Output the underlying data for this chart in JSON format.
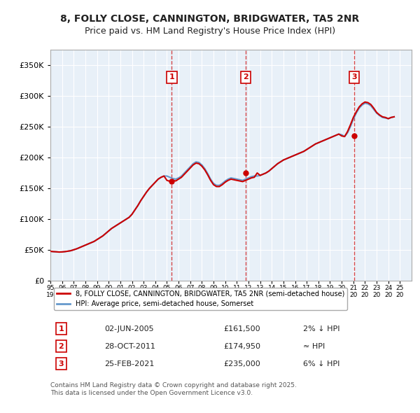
{
  "title_line1": "8, FOLLY CLOSE, CANNINGTON, BRIDGWATER, TA5 2NR",
  "title_line2": "Price paid vs. HM Land Registry's House Price Index (HPI)",
  "ylabel": "",
  "xlabel": "",
  "xlim_start": 1995.0,
  "xlim_end": 2026.0,
  "ylim": [
    0,
    375000
  ],
  "yticks": [
    0,
    50000,
    100000,
    150000,
    200000,
    250000,
    300000,
    350000
  ],
  "ytick_labels": [
    "£0",
    "£50K",
    "£100K",
    "£150K",
    "£200K",
    "£250K",
    "£300K",
    "£350K"
  ],
  "background_color": "#ffffff",
  "plot_bg_color": "#e8f0f8",
  "grid_color": "#ffffff",
  "property_color": "#cc0000",
  "hpi_color": "#6699cc",
  "legend1": "8, FOLLY CLOSE, CANNINGTON, BRIDGWATER, TA5 2NR (semi-detached house)",
  "legend2": "HPI: Average price, semi-detached house, Somerset",
  "sale_dates": [
    "2005-06-02",
    "2011-10-28",
    "2021-02-25"
  ],
  "sale_prices": [
    161500,
    174950,
    235000
  ],
  "sale_labels": [
    "1",
    "2",
    "3"
  ],
  "table_rows": [
    [
      "1",
      "02-JUN-2005",
      "£161,500",
      "2% ↓ HPI"
    ],
    [
      "2",
      "28-OCT-2011",
      "£174,950",
      "≈ HPI"
    ],
    [
      "3",
      "25-FEB-2021",
      "£235,000",
      "6% ↓ HPI"
    ]
  ],
  "footer": "Contains HM Land Registry data © Crown copyright and database right 2025.\nThis data is licensed under the Open Government Licence v3.0.",
  "hpi_years": [
    1995.0,
    1995.25,
    1995.5,
    1995.75,
    1996.0,
    1996.25,
    1996.5,
    1996.75,
    1997.0,
    1997.25,
    1997.5,
    1997.75,
    1998.0,
    1998.25,
    1998.5,
    1998.75,
    1999.0,
    1999.25,
    1999.5,
    1999.75,
    2000.0,
    2000.25,
    2000.5,
    2000.75,
    2001.0,
    2001.25,
    2001.5,
    2001.75,
    2002.0,
    2002.25,
    2002.5,
    2002.75,
    2003.0,
    2003.25,
    2003.5,
    2003.75,
    2004.0,
    2004.25,
    2004.5,
    2004.75,
    2005.0,
    2005.25,
    2005.5,
    2005.75,
    2006.0,
    2006.25,
    2006.5,
    2006.75,
    2007.0,
    2007.25,
    2007.5,
    2007.75,
    2008.0,
    2008.25,
    2008.5,
    2008.75,
    2009.0,
    2009.25,
    2009.5,
    2009.75,
    2010.0,
    2010.25,
    2010.5,
    2010.75,
    2011.0,
    2011.25,
    2011.5,
    2011.75,
    2012.0,
    2012.25,
    2012.5,
    2012.75,
    2013.0,
    2013.25,
    2013.5,
    2013.75,
    2014.0,
    2014.25,
    2014.5,
    2014.75,
    2015.0,
    2015.25,
    2015.5,
    2015.75,
    2016.0,
    2016.25,
    2016.5,
    2016.75,
    2017.0,
    2017.25,
    2017.5,
    2017.75,
    2018.0,
    2018.25,
    2018.5,
    2018.75,
    2019.0,
    2019.25,
    2019.5,
    2019.75,
    2020.0,
    2020.25,
    2020.5,
    2020.75,
    2021.0,
    2021.25,
    2021.5,
    2021.75,
    2022.0,
    2022.25,
    2022.5,
    2022.75,
    2023.0,
    2023.25,
    2023.5,
    2023.75,
    2024.0,
    2024.25,
    2024.5
  ],
  "hpi_values": [
    48000,
    47500,
    47200,
    46800,
    47000,
    47500,
    48200,
    49000,
    50500,
    52000,
    54000,
    56000,
    58000,
    60000,
    62000,
    64000,
    67000,
    70000,
    73000,
    77000,
    81000,
    85000,
    88000,
    91000,
    94000,
    97000,
    100000,
    103000,
    108000,
    115000,
    122000,
    130000,
    137000,
    144000,
    150000,
    155000,
    160000,
    165000,
    168000,
    170000,
    170000,
    168000,
    166000,
    165000,
    167000,
    170000,
    175000,
    180000,
    185000,
    190000,
    193000,
    192000,
    188000,
    182000,
    174000,
    165000,
    158000,
    155000,
    155000,
    158000,
    162000,
    165000,
    167000,
    166000,
    165000,
    164000,
    163000,
    165000,
    167000,
    169000,
    170000,
    170000,
    171000,
    173000,
    175000,
    178000,
    182000,
    186000,
    190000,
    193000,
    196000,
    198000,
    200000,
    202000,
    204000,
    206000,
    208000,
    210000,
    213000,
    216000,
    219000,
    222000,
    224000,
    226000,
    228000,
    230000,
    232000,
    234000,
    236000,
    238000,
    237000,
    234000,
    240000,
    250000,
    262000,
    272000,
    280000,
    285000,
    288000,
    287000,
    284000,
    278000,
    272000,
    268000,
    265000,
    264000,
    263000,
    265000,
    266000
  ],
  "prop_years": [
    1995.0,
    1995.25,
    1995.5,
    1995.75,
    1996.0,
    1996.25,
    1996.5,
    1996.75,
    1997.0,
    1997.25,
    1997.5,
    1997.75,
    1998.0,
    1998.25,
    1998.5,
    1998.75,
    1999.0,
    1999.25,
    1999.5,
    1999.75,
    2000.0,
    2000.25,
    2000.5,
    2000.75,
    2001.0,
    2001.25,
    2001.5,
    2001.75,
    2002.0,
    2002.25,
    2002.5,
    2002.75,
    2003.0,
    2003.25,
    2003.5,
    2003.75,
    2004.0,
    2004.25,
    2004.5,
    2004.75,
    2005.0,
    2005.25,
    2005.5,
    2005.75,
    2006.0,
    2006.25,
    2006.5,
    2006.75,
    2007.0,
    2007.25,
    2007.5,
    2007.75,
    2008.0,
    2008.25,
    2008.5,
    2008.75,
    2009.0,
    2009.25,
    2009.5,
    2009.75,
    2010.0,
    2010.25,
    2010.5,
    2010.75,
    2011.0,
    2011.25,
    2011.5,
    2011.75,
    2012.0,
    2012.25,
    2012.5,
    2012.75,
    2013.0,
    2013.25,
    2013.5,
    2013.75,
    2014.0,
    2014.25,
    2014.5,
    2014.75,
    2015.0,
    2015.25,
    2015.5,
    2015.75,
    2016.0,
    2016.25,
    2016.5,
    2016.75,
    2017.0,
    2017.25,
    2017.5,
    2017.75,
    2018.0,
    2018.25,
    2018.5,
    2018.75,
    2019.0,
    2019.25,
    2019.5,
    2019.75,
    2020.0,
    2020.25,
    2020.5,
    2020.75,
    2021.0,
    2021.25,
    2021.5,
    2021.75,
    2022.0,
    2022.25,
    2022.5,
    2022.75,
    2023.0,
    2023.25,
    2023.5,
    2023.75,
    2024.0,
    2024.25,
    2024.5
  ],
  "prop_values": [
    48000,
    47500,
    47200,
    46800,
    47000,
    47500,
    48200,
    49000,
    50500,
    52000,
    54000,
    56000,
    58000,
    60000,
    62000,
    64000,
    67000,
    70000,
    73000,
    77000,
    81000,
    85000,
    88000,
    91000,
    94000,
    97000,
    100000,
    103000,
    108000,
    115000,
    122000,
    130000,
    137000,
    144000,
    150000,
    155000,
    160000,
    165000,
    168000,
    170000,
    163000,
    161500,
    163000,
    162000,
    165000,
    168000,
    173000,
    178000,
    183000,
    188000,
    191000,
    190000,
    186000,
    180000,
    172000,
    163000,
    156000,
    153000,
    153000,
    156000,
    160000,
    163000,
    165000,
    164000,
    163000,
    162000,
    161000,
    163000,
    165000,
    167000,
    168000,
    174950,
    171000,
    173000,
    175000,
    178000,
    182000,
    186000,
    190000,
    193000,
    196000,
    198000,
    200000,
    202000,
    204000,
    206000,
    208000,
    210000,
    213000,
    216000,
    219000,
    222000,
    224000,
    226000,
    228000,
    230000,
    232000,
    234000,
    236000,
    238000,
    235000,
    234000,
    242000,
    253000,
    265000,
    274000,
    282000,
    287000,
    290000,
    289000,
    286000,
    280000,
    273000,
    269000,
    266000,
    265000,
    263000,
    265000,
    266000
  ]
}
